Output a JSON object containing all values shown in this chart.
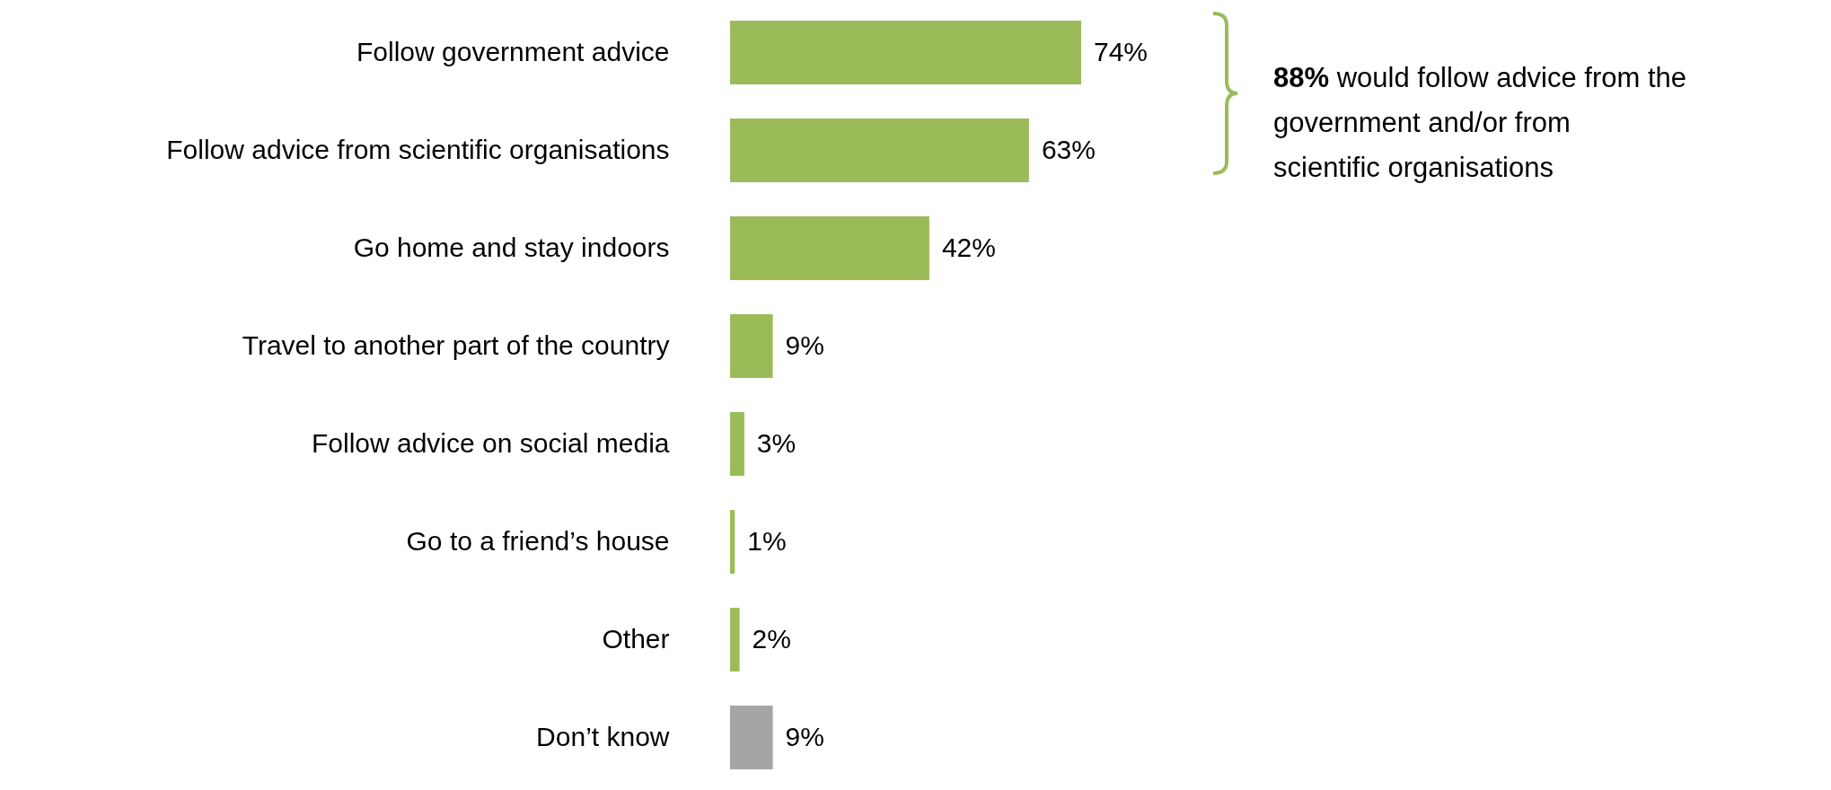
{
  "chart_data": {
    "type": "bar",
    "orientation": "horizontal",
    "categories": [
      "Follow government advice",
      "Follow advice from scientific organisations",
      "Go home and stay indoors",
      "Travel to another part of the country",
      "Follow advice on social media",
      "Go to a friend’s house",
      "Other",
      "Don’t know"
    ],
    "values": [
      74,
      63,
      42,
      9,
      3,
      1,
      2,
      9
    ],
    "value_labels": [
      "74%",
      "63%",
      "42%",
      "9%",
      "3%",
      "1%",
      "2%",
      "9%"
    ],
    "colors": [
      "#9bbb59",
      "#9bbb59",
      "#9bbb59",
      "#9bbb59",
      "#9bbb59",
      "#9bbb59",
      "#9bbb59",
      "#a5a5a5"
    ],
    "annotations": [
      "88% would follow advice from the government and/or from scientific organisations"
    ]
  }
}
